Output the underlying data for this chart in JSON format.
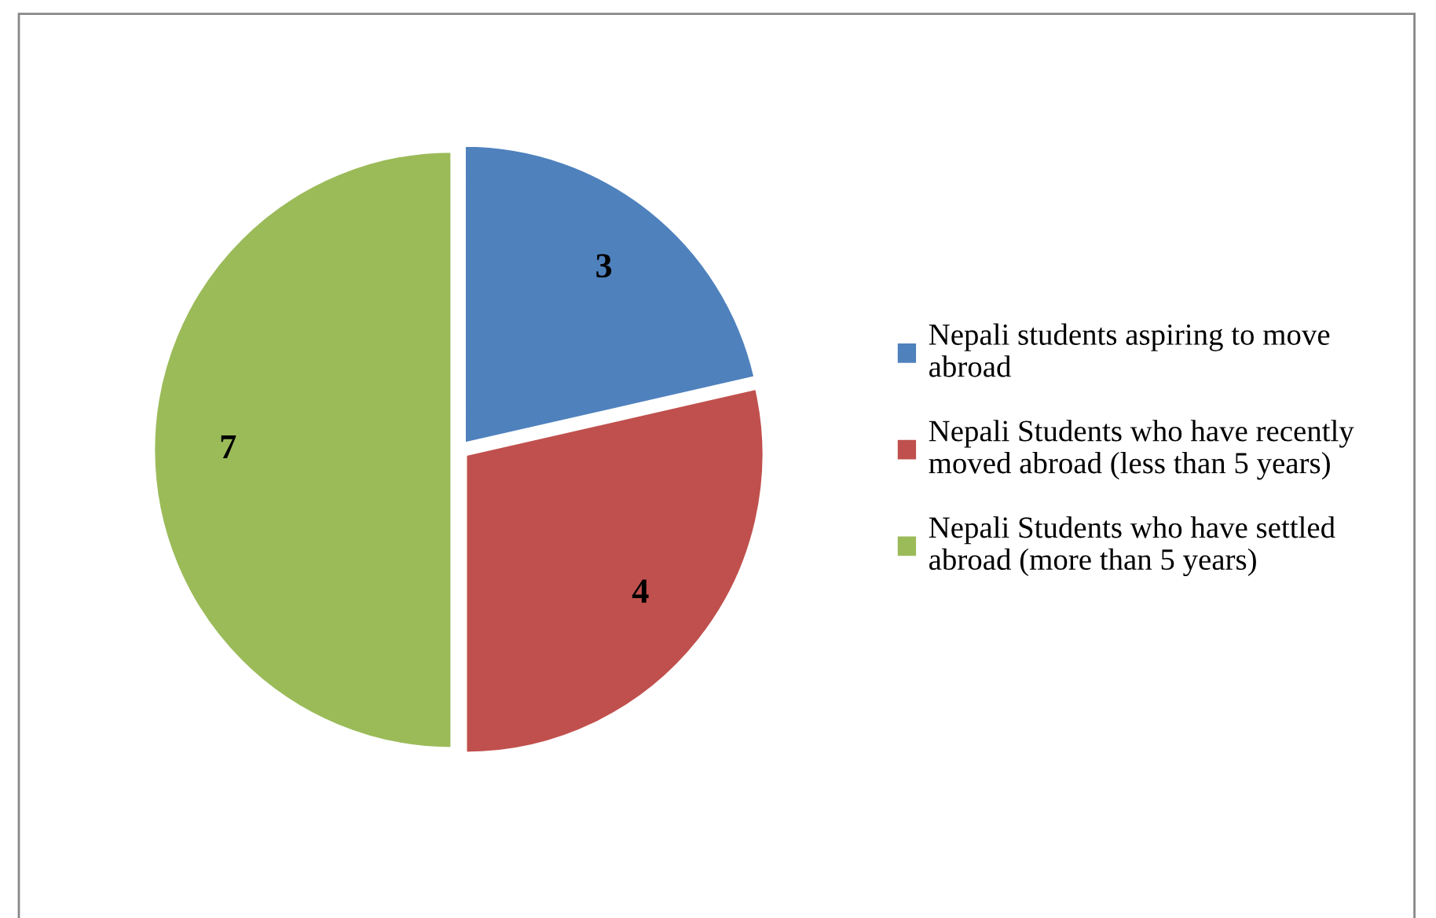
{
  "chart_data": {
    "type": "pie",
    "categories": [
      "Nepali students aspiring to move\nabroad",
      "Nepali Students who have recently\nmoved abroad (less than 5 years)",
      "Nepali Students who have settled\nabroad (more than 5 years)"
    ],
    "values": [
      3,
      4,
      7
    ],
    "colors": [
      "#4f81bd",
      "#c0504d",
      "#9bbb59"
    ],
    "data_labels": true,
    "legend": "right"
  }
}
